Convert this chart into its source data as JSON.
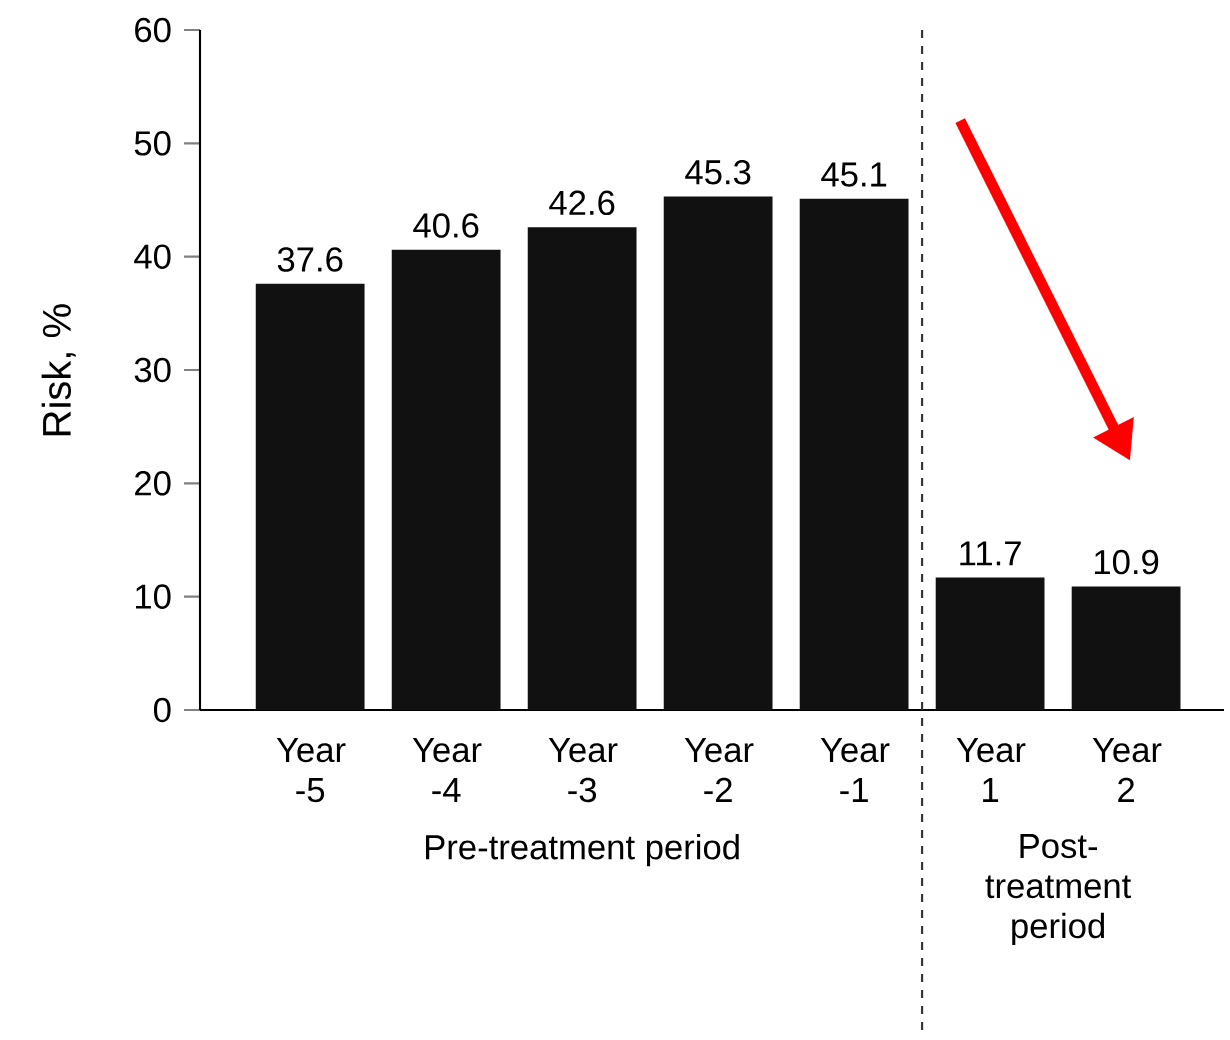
{
  "chart_data": {
    "type": "bar",
    "ylabel": "Risk, %",
    "categories": [
      "Year -5",
      "Year -4",
      "Year -3",
      "Year -2",
      "Year -1",
      "Year 1",
      "Year 2"
    ],
    "values": [
      37.6,
      40.6,
      42.6,
      45.3,
      45.1,
      11.7,
      10.9
    ],
    "color": "#111111",
    "ylim": [
      0,
      60
    ],
    "yticks": [
      0,
      10,
      20,
      30,
      40,
      50,
      60
    ],
    "data_labels": true,
    "grid": false,
    "annotations": [
      "Pre-treatment period",
      "Post-treatment period"
    ]
  }
}
